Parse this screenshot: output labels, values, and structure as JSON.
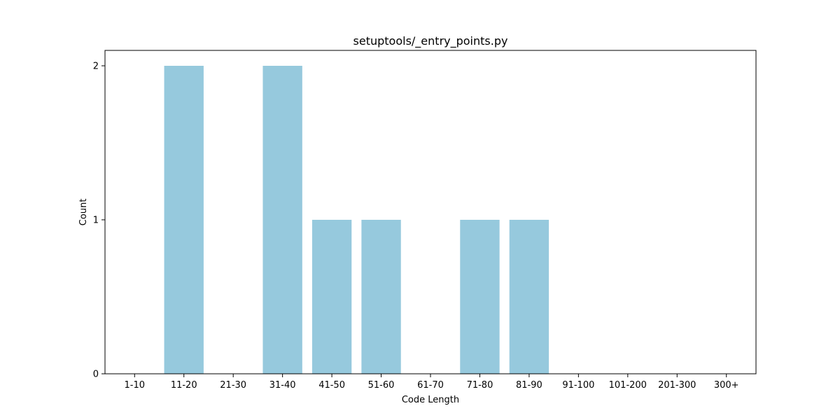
{
  "chart_data": {
    "type": "bar",
    "title": "setuptools/_entry_points.py",
    "xlabel": "Code Length",
    "ylabel": "Count",
    "categories": [
      "1-10",
      "11-20",
      "21-30",
      "31-40",
      "41-50",
      "51-60",
      "61-70",
      "71-80",
      "81-90",
      "91-100",
      "101-200",
      "201-300",
      "300+"
    ],
    "values": [
      0,
      2,
      0,
      2,
      1,
      1,
      0,
      1,
      1,
      0,
      0,
      0,
      0
    ],
    "ylim": [
      0,
      2.1
    ],
    "yticks": [
      0,
      1,
      2
    ],
    "grid": false,
    "legend": "none",
    "bar_color": "#96c9dd"
  }
}
